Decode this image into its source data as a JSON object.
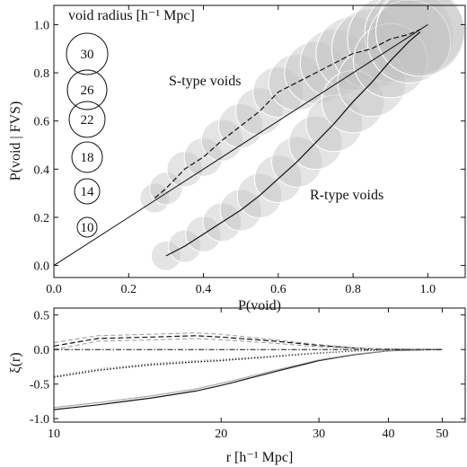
{
  "chart_data": [
    {
      "type": "scatter",
      "xlabel": "P(void)",
      "ylabel": "P(void | FVS)",
      "xlim": [
        0,
        1.1
      ],
      "ylim": [
        -0.05,
        1.08
      ],
      "xticks": [
        "0.0",
        "0.2",
        "0.4",
        "0.6",
        "0.8",
        "1.0"
      ],
      "yticks": [
        "0.0",
        "0.2",
        "0.4",
        "0.6",
        "0.8",
        "1.0"
      ],
      "legend": {
        "title": "void radius [h⁻¹ Mpc]",
        "sizes": [
          "30",
          "26",
          "22",
          "18",
          "14",
          "10"
        ]
      },
      "annotations": {
        "s_type": "S-type voids",
        "r_type": "R-type voids"
      },
      "diagonal": {
        "x": [
          0.0,
          1.0
        ],
        "y": [
          0.0,
          1.0
        ]
      },
      "series": [
        {
          "x": [
            0.27,
            0.3,
            0.35,
            0.4,
            0.45,
            0.5,
            0.55,
            0.6,
            0.65,
            0.7,
            0.75,
            0.8,
            0.85,
            0.9,
            0.95,
            0.98
          ],
          "y": [
            0.28,
            0.32,
            0.4,
            0.45,
            0.52,
            0.58,
            0.64,
            0.72,
            0.76,
            0.8,
            0.84,
            0.88,
            0.9,
            0.94,
            0.96,
            0.98
          ],
          "radius": [
            10,
            11,
            12,
            13,
            14,
            15,
            16,
            17,
            19,
            21,
            23,
            25,
            27,
            29,
            30,
            30
          ]
        },
        {
          "x": [
            0.3,
            0.35,
            0.4,
            0.45,
            0.5,
            0.55,
            0.6,
            0.65,
            0.7,
            0.75,
            0.8,
            0.85,
            0.9,
            0.95,
            0.98
          ],
          "y": [
            0.04,
            0.08,
            0.13,
            0.18,
            0.23,
            0.29,
            0.36,
            0.43,
            0.51,
            0.59,
            0.68,
            0.76,
            0.85,
            0.93,
            0.97
          ],
          "radius": [
            10,
            11,
            12,
            13,
            14,
            15,
            16,
            17,
            18,
            19,
            21,
            23,
            25,
            28,
            30
          ]
        }
      ]
    },
    {
      "type": "line",
      "xlabel": "r [h⁻¹ Mpc]",
      "ylabel": "ξ(r)",
      "xlim": [
        10,
        55
      ],
      "ylim": [
        -1.05,
        0.6
      ],
      "xscale": "log",
      "xticks": [
        "10",
        "20",
        "30",
        "40",
        "50"
      ],
      "yticks": [
        "0.5",
        "0.0",
        "-0.5",
        "-1.0"
      ],
      "x": [
        10,
        12,
        15,
        18,
        20,
        25,
        30,
        35,
        40,
        45,
        50
      ],
      "series": [
        {
          "style": "dashed",
          "values": [
            0.05,
            0.16,
            0.18,
            0.2,
            0.18,
            0.12,
            0.06,
            0.02,
            0.005,
            0.0,
            0.0
          ]
        },
        {
          "style": "dashed-grey",
          "values": [
            0.1,
            0.2,
            0.22,
            0.24,
            0.22,
            0.14,
            0.07,
            0.025,
            0.008,
            0.0,
            0.0
          ]
        },
        {
          "style": "dashed-grey",
          "values": [
            0.0,
            0.12,
            0.14,
            0.16,
            0.14,
            0.09,
            0.04,
            0.015,
            0.003,
            0.0,
            0.0
          ]
        },
        {
          "style": "dotted",
          "values": [
            -0.4,
            -0.3,
            -0.22,
            -0.18,
            -0.16,
            -0.1,
            -0.05,
            -0.02,
            -0.005,
            0.0,
            0.0
          ]
        },
        {
          "style": "dotted-grey",
          "values": [
            -0.38,
            -0.28,
            -0.2,
            -0.16,
            -0.14,
            -0.09,
            -0.045,
            -0.017,
            -0.004,
            0.0,
            0.0
          ]
        },
        {
          "style": "solid",
          "values": [
            -0.87,
            -0.8,
            -0.7,
            -0.6,
            -0.52,
            -0.32,
            -0.16,
            -0.07,
            -0.02,
            -0.005,
            0.0
          ]
        },
        {
          "style": "solid-grey",
          "values": [
            -0.84,
            -0.77,
            -0.67,
            -0.57,
            -0.49,
            -0.3,
            -0.15,
            -0.065,
            -0.018,
            -0.004,
            0.0
          ]
        },
        {
          "style": "dashdot",
          "values": [
            0,
            0,
            0,
            0,
            0,
            0,
            0,
            0,
            0,
            0,
            0
          ]
        }
      ]
    }
  ]
}
